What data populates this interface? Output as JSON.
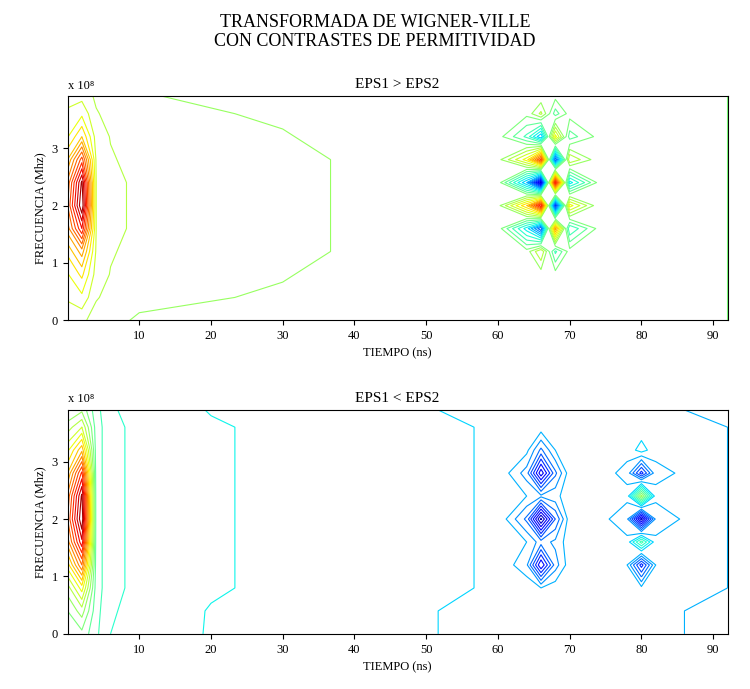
{
  "title": "TRANSFORMADA DE WIGNER-VILLE\nCON CONTRASTES DE PERMITIVIDAD",
  "chart_data": [
    {
      "type": "contour",
      "title": "EPS1 > EPS2",
      "x_label": "TIEMPO (ns)",
      "y_label": "FRECUENCIA (Mhz)",
      "annotation": "x 10⁸",
      "color": "jet",
      "grid": false,
      "xlim": [
        0,
        92
      ],
      "ylim": [
        0,
        3.9
      ],
      "xticks": [
        10,
        20,
        30,
        40,
        50,
        60,
        70,
        80,
        90
      ],
      "yticks": [
        0,
        1,
        2,
        3
      ],
      "zlim": [
        -1,
        1
      ],
      "x": [
        0,
        2,
        4,
        6,
        10,
        20,
        30,
        40,
        50,
        60,
        64,
        66,
        68,
        70,
        74,
        78,
        80,
        82,
        86,
        92
      ],
      "y": [
        0,
        0.4,
        0.8,
        1.2,
        1.6,
        2.0,
        2.4,
        2.8,
        3.2,
        3.6,
        3.9
      ],
      "z": [
        [
          0.15,
          0.15,
          0.1,
          0.08,
          0.06,
          0.05,
          0.04,
          0.03,
          0.03,
          0.02,
          0.02,
          0.02,
          0.02,
          0.02,
          0.01,
          0.01,
          0.01,
          0.01,
          0.01,
          0.0
        ],
        [
          0.21,
          0.25,
          0.14,
          0.11,
          0.08,
          0.07,
          0.06,
          0.04,
          0.04,
          0.03,
          0.02,
          0.02,
          0.02,
          0.02,
          0.01,
          0.01,
          0.01,
          0.01,
          0.01,
          0.0
        ],
        [
          0.26,
          0.35,
          0.17,
          0.13,
          0.1,
          0.09,
          0.07,
          0.05,
          0.04,
          0.03,
          0.03,
          0.03,
          0.03,
          0.03,
          0.02,
          0.02,
          0.02,
          0.01,
          0.01,
          0.0
        ],
        [
          0.35,
          0.5,
          0.19,
          0.14,
          0.11,
          0.1,
          0.08,
          0.06,
          0.05,
          0.04,
          0.03,
          0.2,
          -0.15,
          0.03,
          0.02,
          0.02,
          0.02,
          0.01,
          0.01,
          0.0
        ],
        [
          0.5,
          0.8,
          0.2,
          0.15,
          0.12,
          0.1,
          0.08,
          0.06,
          0.05,
          0.04,
          -0.3,
          -0.6,
          0.5,
          -0.2,
          0.02,
          0.02,
          0.02,
          0.01,
          0.01,
          0.0
        ],
        [
          0.6,
          1.0,
          0.2,
          0.15,
          0.12,
          0.1,
          0.08,
          0.06,
          0.05,
          0.04,
          0.4,
          0.8,
          -0.7,
          0.3,
          0.02,
          0.02,
          0.02,
          0.01,
          0.01,
          0.0
        ],
        [
          0.55,
          0.95,
          0.2,
          0.15,
          0.12,
          0.1,
          0.08,
          0.06,
          0.05,
          0.04,
          -0.4,
          -0.9,
          0.8,
          -0.3,
          0.02,
          0.02,
          0.02,
          0.01,
          0.01,
          0.0
        ],
        [
          0.4,
          0.7,
          0.19,
          0.14,
          0.11,
          0.1,
          0.08,
          0.06,
          0.05,
          0.04,
          0.3,
          0.7,
          -0.6,
          0.2,
          0.02,
          0.02,
          0.02,
          0.01,
          0.01,
          0.0
        ],
        [
          0.26,
          0.4,
          0.17,
          0.13,
          0.1,
          0.09,
          0.07,
          0.05,
          0.04,
          0.03,
          -0.15,
          -0.4,
          0.3,
          -0.1,
          0.02,
          0.02,
          0.02,
          0.01,
          0.01,
          0.0
        ],
        [
          0.21,
          0.25,
          0.14,
          0.11,
          0.08,
          0.07,
          0.06,
          0.04,
          0.04,
          0.03,
          0.02,
          0.15,
          -0.1,
          0.03,
          0.01,
          0.01,
          0.01,
          0.01,
          0.01,
          0.0
        ],
        [
          0.18,
          0.18,
          0.12,
          0.09,
          0.07,
          0.06,
          0.05,
          0.04,
          0.03,
          0.02,
          0.02,
          0.02,
          0.02,
          0.02,
          0.01,
          0.01,
          0.01,
          0.01,
          0.01,
          0.0
        ]
      ]
    },
    {
      "type": "contour",
      "title": "EPS1 < EPS2",
      "x_label": "TIEMPO (ns)",
      "y_label": "FRECUENCIA (Mhz)",
      "annotation": "x 10⁸",
      "color": "jet",
      "grid": false,
      "xlim": [
        0,
        92
      ],
      "ylim": [
        0,
        3.9
      ],
      "xticks": [
        10,
        20,
        30,
        40,
        50,
        60,
        70,
        80,
        90
      ],
      "yticks": [
        0,
        1,
        2,
        3
      ],
      "zlim": [
        -1,
        1
      ],
      "x": [
        0,
        2,
        4,
        6,
        10,
        20,
        30,
        40,
        50,
        60,
        64,
        66,
        68,
        70,
        74,
        78,
        80,
        82,
        86,
        92
      ],
      "y": [
        0,
        0.4,
        0.8,
        1.2,
        1.6,
        2.0,
        2.4,
        2.8,
        3.2,
        3.6,
        3.9
      ],
      "z": [
        [
          -0.05,
          -0.02,
          -0.12,
          -0.2,
          -0.24,
          -0.27,
          -0.29,
          -0.31,
          -0.33,
          -0.35,
          -0.36,
          -0.36,
          -0.37,
          -0.37,
          -0.38,
          -0.39,
          -0.39,
          -0.39,
          -0.4,
          -0.41
        ],
        [
          0.0,
          0.1,
          -0.11,
          -0.19,
          -0.23,
          -0.27,
          -0.29,
          -0.31,
          -0.33,
          -0.35,
          -0.36,
          -0.36,
          -0.37,
          -0.37,
          -0.38,
          -0.39,
          -0.39,
          -0.39,
          -0.4,
          -0.41
        ],
        [
          0.1,
          0.3,
          -0.1,
          -0.18,
          -0.22,
          -0.26,
          -0.28,
          -0.3,
          -0.32,
          -0.34,
          -0.35,
          -0.4,
          -0.36,
          -0.36,
          -0.37,
          -0.38,
          -0.38,
          -0.38,
          -0.39,
          -0.4
        ],
        [
          0.3,
          0.6,
          -0.1,
          -0.18,
          -0.22,
          -0.26,
          -0.28,
          -0.3,
          -0.32,
          -0.34,
          -0.45,
          -0.8,
          -0.5,
          -0.36,
          -0.37,
          -0.4,
          -0.7,
          -0.4,
          -0.39,
          -0.4
        ],
        [
          0.5,
          0.85,
          -0.1,
          -0.18,
          -0.22,
          -0.26,
          -0.28,
          -0.3,
          -0.32,
          -0.34,
          -0.4,
          -0.5,
          -0.45,
          -0.36,
          -0.37,
          -0.38,
          -0.1,
          -0.38,
          -0.39,
          -0.4
        ],
        [
          0.6,
          1.0,
          -0.1,
          -0.18,
          -0.22,
          -0.26,
          -0.28,
          -0.3,
          -0.32,
          -0.34,
          -0.55,
          -0.95,
          -0.6,
          -0.36,
          -0.37,
          -0.45,
          -0.9,
          -0.45,
          -0.39,
          -0.4
        ],
        [
          0.55,
          0.95,
          -0.1,
          -0.18,
          -0.22,
          -0.26,
          -0.28,
          -0.3,
          -0.32,
          -0.34,
          -0.4,
          -0.45,
          -0.42,
          -0.36,
          -0.37,
          -0.38,
          0.1,
          -0.38,
          -0.39,
          -0.4
        ],
        [
          0.4,
          0.75,
          -0.1,
          -0.18,
          -0.22,
          -0.26,
          -0.28,
          -0.3,
          -0.32,
          -0.34,
          -0.5,
          -0.85,
          -0.55,
          -0.36,
          -0.37,
          -0.42,
          -0.7,
          -0.42,
          -0.39,
          -0.4
        ],
        [
          0.25,
          0.45,
          -0.1,
          -0.18,
          -0.22,
          -0.26,
          -0.28,
          -0.3,
          -0.32,
          -0.34,
          -0.38,
          -0.55,
          -0.4,
          -0.36,
          -0.37,
          -0.38,
          -0.3,
          -0.38,
          -0.39,
          -0.4
        ],
        [
          0.1,
          0.2,
          -0.1,
          -0.18,
          -0.22,
          -0.26,
          -0.28,
          -0.3,
          -0.32,
          -0.34,
          -0.35,
          -0.36,
          -0.36,
          -0.36,
          -0.37,
          -0.38,
          -0.38,
          -0.38,
          -0.39,
          -0.4
        ],
        [
          0.0,
          0.05,
          -0.11,
          -0.19,
          -0.23,
          -0.27,
          -0.29,
          -0.31,
          -0.33,
          -0.35,
          -0.36,
          -0.36,
          -0.37,
          -0.37,
          -0.38,
          -0.39,
          -0.39,
          -0.39,
          -0.4,
          -0.41
        ]
      ]
    }
  ]
}
